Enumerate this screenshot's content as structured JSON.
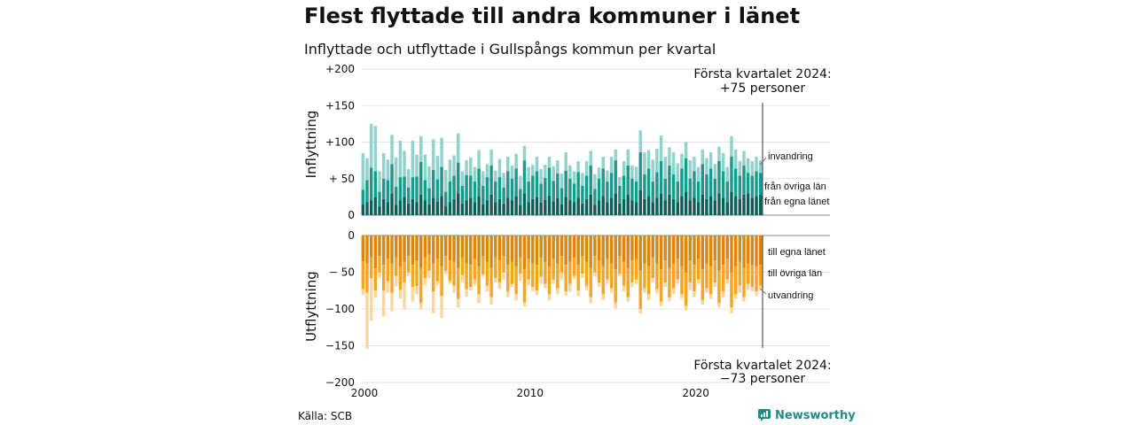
{
  "header": {
    "title": "Flest flyttade till andra kommuner i länet",
    "subtitle": "Inflyttade och utflyttade i Gullspångs kommun per kvartal"
  },
  "footer": {
    "source": "Källa: SCB",
    "brand": "Newsworthy"
  },
  "colors": {
    "in_local": "#0d5e58",
    "in_region": "#1a9a8e",
    "in_immigration": "#8fd3cb",
    "out_local": "#d98612",
    "out_region": "#f4a623",
    "out_emigration": "#f7d6a0",
    "brand": "#1c8c84"
  },
  "chart_data": {
    "type": "bar",
    "stacked": true,
    "x_ticks": [
      {
        "value": 2000,
        "label": "2000"
      },
      {
        "value": 2010,
        "label": "2010"
      },
      {
        "value": 2020,
        "label": "2020"
      }
    ],
    "inflow_panel": {
      "ylabel": "Inflyttning",
      "ylim": [
        0,
        200
      ],
      "y_ticks": [
        {
          "value": 0,
          "label": "0"
        },
        {
          "value": 50,
          "label": "+ 50"
        },
        {
          "value": 100,
          "label": "+100"
        },
        {
          "value": 150,
          "label": "+150"
        },
        {
          "value": 200,
          "label": "+200"
        }
      ],
      "annotation": [
        "Första kvartalet 2024:",
        "+75 personer"
      ],
      "legend": [
        {
          "label": "invandring",
          "series": "immigration"
        },
        {
          "label": "från övriga län",
          "series": "from_other_regions"
        },
        {
          "label": "från egna länet",
          "series": "from_own_region"
        }
      ]
    },
    "outflow_panel": {
      "ylabel": "Utflyttning",
      "ylim": [
        -200,
        0
      ],
      "y_ticks": [
        {
          "value": 0,
          "label": "0"
        },
        {
          "value": -50,
          "label": "− 50"
        },
        {
          "value": -100,
          "label": "−100"
        },
        {
          "value": -150,
          "label": "−150"
        },
        {
          "value": -200,
          "label": "−200"
        }
      ],
      "annotation": [
        "Första kvartalet 2024:",
        "−73 personer"
      ],
      "legend": [
        {
          "label": "till egna länet",
          "series": "to_own_region"
        },
        {
          "label": "till övriga län",
          "series": "to_other_regions"
        },
        {
          "label": "utvandring",
          "series": "emigration"
        }
      ]
    },
    "start_year": 2000,
    "periods": 97,
    "inflow": {
      "from_own_region": [
        15,
        18,
        20,
        25,
        12,
        22,
        18,
        30,
        14,
        20,
        25,
        16,
        22,
        18,
        28,
        20,
        15,
        24,
        19,
        26,
        12,
        18,
        22,
        30,
        16,
        20,
        24,
        18,
        26,
        15,
        20,
        28,
        18,
        22,
        16,
        24,
        20,
        26,
        14,
        30,
        18,
        22,
        25,
        17,
        21,
        27,
        19,
        23,
        15,
        25,
        20,
        18,
        24,
        16,
        22,
        28,
        14,
        20,
        26,
        18,
        24,
        30,
        16,
        22,
        28,
        20,
        18,
        34,
        22,
        26,
        18,
        24,
        30,
        20,
        28,
        22,
        18,
        26,
        32,
        20,
        24,
        18,
        28,
        22,
        26,
        20,
        30,
        24,
        18,
        32,
        26,
        22,
        28,
        30,
        24,
        26,
        28
      ],
      "from_other_regions": [
        20,
        30,
        45,
        35,
        20,
        28,
        30,
        40,
        25,
        32,
        28,
        22,
        30,
        35,
        45,
        28,
        22,
        38,
        30,
        40,
        20,
        28,
        32,
        42,
        24,
        35,
        30,
        28,
        38,
        25,
        32,
        40,
        28,
        30,
        22,
        36,
        30,
        38,
        22,
        45,
        28,
        32,
        35,
        26,
        30,
        38,
        28,
        34,
        22,
        36,
        30,
        25,
        35,
        24,
        32,
        40,
        22,
        30,
        38,
        28,
        34,
        45,
        24,
        32,
        40,
        30,
        28,
        52,
        34,
        38,
        28,
        35,
        44,
        30,
        40,
        34,
        28,
        38,
        46,
        30,
        36,
        28,
        42,
        34,
        38,
        30,
        44,
        36,
        28,
        48,
        38,
        32,
        40,
        28,
        30,
        34,
        30
      ],
      "immigration": [
        50,
        30,
        60,
        62,
        28,
        35,
        28,
        40,
        40,
        50,
        35,
        25,
        50,
        30,
        35,
        35,
        30,
        42,
        32,
        40,
        30,
        30,
        28,
        40,
        20,
        20,
        25,
        20,
        25,
        20,
        18,
        22,
        15,
        25,
        20,
        20,
        18,
        20,
        18,
        20,
        20,
        15,
        20,
        20,
        18,
        15,
        20,
        18,
        20,
        25,
        18,
        17,
        15,
        18,
        20,
        20,
        20,
        15,
        16,
        15,
        22,
        15,
        12,
        20,
        22,
        18,
        20,
        30,
        30,
        25,
        30,
        32,
        35,
        30,
        25,
        30,
        25,
        20,
        22,
        25,
        20,
        20,
        20,
        22,
        22,
        20,
        20,
        25,
        20,
        28,
        26,
        20,
        20,
        20,
        20,
        20,
        17
      ]
    },
    "outflow": {
      "to_own_region": [
        35,
        38,
        30,
        45,
        28,
        40,
        32,
        38,
        30,
        42,
        36,
        28,
        40,
        34,
        44,
        30,
        26,
        38,
        32,
        42,
        28,
        34,
        36,
        44,
        30,
        38,
        40,
        32,
        42,
        28,
        36,
        44,
        30,
        34,
        28,
        40,
        36,
        42,
        30,
        46,
        32,
        38,
        40,
        30,
        36,
        42,
        32,
        38,
        28,
        40,
        36,
        30,
        40,
        28,
        36,
        44,
        28,
        34,
        42,
        32,
        38,
        46,
        28,
        36,
        44,
        34,
        32,
        48,
        38,
        42,
        30,
        38,
        46,
        34,
        44,
        38,
        32,
        42,
        50,
        34,
        40,
        32,
        46,
        38,
        42,
        34,
        48,
        40,
        32,
        50,
        42,
        36,
        44,
        38,
        40,
        42,
        40
      ],
      "to_other_regions": [
        38,
        40,
        28,
        30,
        22,
        35,
        30,
        40,
        25,
        32,
        28,
        22,
        30,
        35,
        48,
        28,
        22,
        38,
        30,
        40,
        20,
        28,
        32,
        42,
        24,
        35,
        30,
        28,
        38,
        25,
        32,
        40,
        28,
        30,
        22,
        36,
        30,
        38,
        22,
        45,
        28,
        32,
        35,
        26,
        30,
        38,
        28,
        34,
        22,
        36,
        30,
        25,
        35,
        24,
        32,
        40,
        22,
        30,
        38,
        28,
        34,
        45,
        24,
        32,
        40,
        30,
        28,
        52,
        34,
        38,
        28,
        35,
        44,
        30,
        40,
        34,
        28,
        38,
        46,
        30,
        36,
        28,
        42,
        34,
        38,
        30,
        44,
        36,
        28,
        48,
        38,
        32,
        40,
        28,
        30,
        34,
        28
      ],
      "emigration": [
        8,
        76,
        58,
        10,
        8,
        35,
        16,
        25,
        14,
        12,
        36,
        5,
        20,
        11,
        8,
        9,
        10,
        30,
        6,
        30,
        5,
        4,
        10,
        12,
        10,
        10,
        5,
        8,
        12,
        4,
        8,
        10,
        6,
        9,
        10,
        8,
        4,
        8,
        10,
        6,
        8,
        6,
        6,
        10,
        6,
        8,
        6,
        8,
        10,
        6,
        10,
        4,
        8,
        6,
        6,
        8,
        6,
        6,
        8,
        6,
        6,
        8,
        4,
        8,
        6,
        6,
        6,
        6,
        6,
        8,
        6,
        6,
        6,
        6,
        6,
        8,
        6,
        6,
        6,
        10,
        8,
        6,
        6,
        6,
        6,
        6,
        6,
        8,
        6,
        8,
        6,
        10,
        6,
        8,
        6,
        6,
        5
      ]
    }
  }
}
